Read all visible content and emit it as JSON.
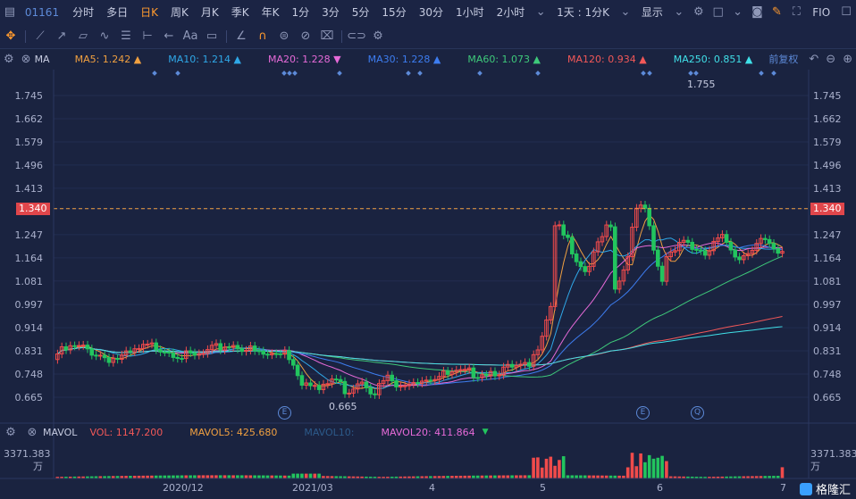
{
  "topbar": {
    "symbol": "01161",
    "periods": [
      "分时",
      "多日",
      "日K",
      "周K",
      "月K",
      "季K",
      "年K",
      "1分",
      "3分",
      "5分",
      "15分",
      "30分",
      "1小时",
      "2小时"
    ],
    "active_period": "日K",
    "dropdown": "1天 : 1分K",
    "display": "显示",
    "fio": "FIO"
  },
  "ma_legend": {
    "label": "MA",
    "items": [
      {
        "text": "MA5: 1.242",
        "color": "#f0a040",
        "arrow": "▲"
      },
      {
        "text": "MA10: 1.214",
        "color": "#2fa8e8",
        "arrow": "▲"
      },
      {
        "text": "MA20: 1.228",
        "color": "#e66ad8",
        "arrow": "▼"
      },
      {
        "text": "MA30: 1.228",
        "color": "#3d7df0",
        "arrow": "▲"
      },
      {
        "text": "MA60: 1.073",
        "color": "#3ec97a",
        "arrow": "▲"
      },
      {
        "text": "MA120: 0.934",
        "color": "#f25858",
        "arrow": "▲"
      },
      {
        "text": "MA250: 0.851",
        "color": "#40e0e8",
        "arrow": "▲"
      }
    ],
    "adjust": "前复权"
  },
  "price_axis": [
    "1.745",
    "1.662",
    "1.579",
    "1.496",
    "1.413",
    "1.340",
    "1.247",
    "1.164",
    "1.081",
    "0.997",
    "0.914",
    "0.831",
    "0.748",
    "0.665"
  ],
  "current_price": "1.340",
  "high_label": "1.755",
  "low_label": "0.665",
  "event_markers": [
    "E",
    "E",
    "Q"
  ],
  "vol_legend": {
    "label": "MAVOL",
    "vol": "VOL: 1147.200",
    "mavol5": "MAVOL5: 425.680",
    "mavol10": "MAVOL10:",
    "mavol20": "MAVOL20: 411.864"
  },
  "vol_axis": {
    "value": "3371.383",
    "unit": "万"
  },
  "x_labels": [
    "2020/12",
    "2021/03",
    "4",
    "5",
    "6",
    "7"
  ],
  "brand": "格隆汇",
  "colors": {
    "up": "#f04b4b",
    "down": "#22c55e",
    "bg": "#1a2340",
    "accent": "#ff9a2e",
    "price_line": "#f0a040"
  }
}
